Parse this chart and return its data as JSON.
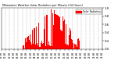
{
  "title": "Milwaukee Weather Solar Radiation per Minute (24 Hours)",
  "bar_color": "#ff0000",
  "background_color": "#ffffff",
  "grid_color": "#aaaaaa",
  "text_color": "#000000",
  "legend_label": "Solar Radiation",
  "legend_color": "#ff0000",
  "ylim": [
    0,
    1.0
  ],
  "xlim": [
    0,
    1440
  ],
  "num_points": 1440,
  "peak_minute": 720,
  "peak_value": 0.88,
  "sunrise": 300,
  "sunset": 1110,
  "sigma_factor": 3.5
}
